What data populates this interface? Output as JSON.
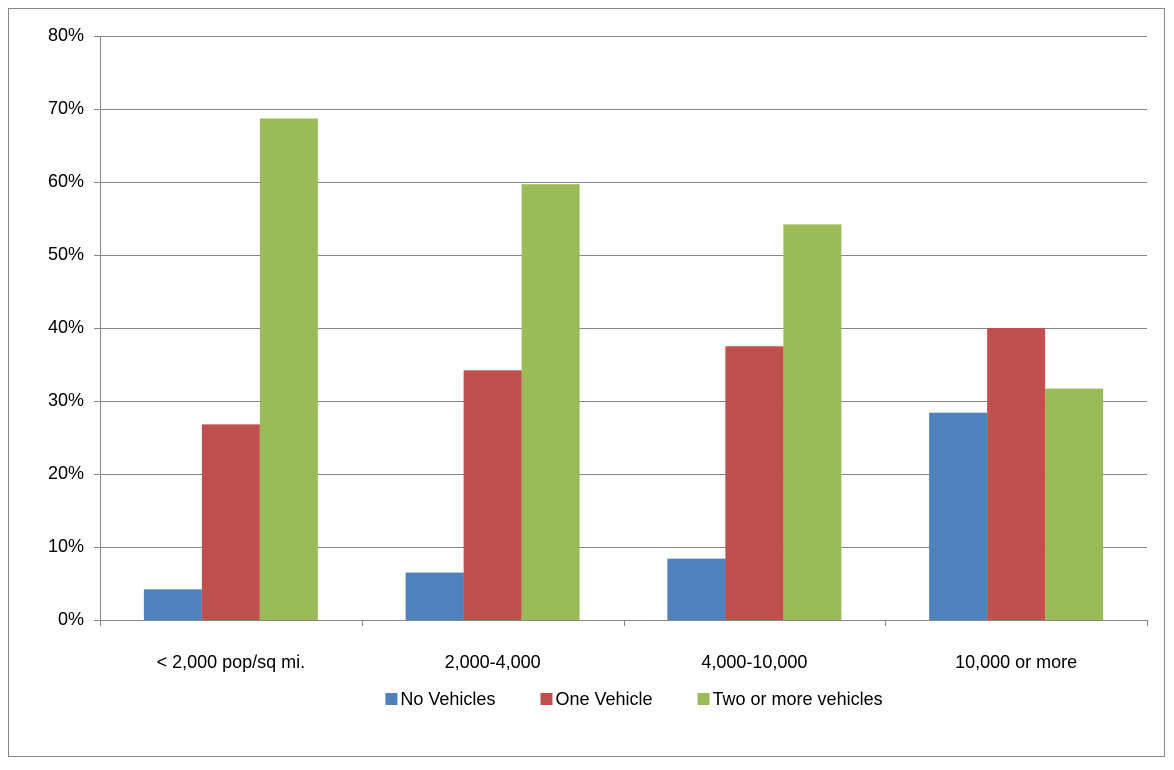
{
  "chart_data": {
    "type": "bar",
    "categories": [
      "< 2,000 pop/sq mi.",
      "2,000-4,000",
      "4,000-10,000",
      "10,000 or more"
    ],
    "series": [
      {
        "name": "No Vehicles",
        "color": "#4f81bd",
        "values": [
          4.2,
          6.5,
          8.4,
          28.4
        ]
      },
      {
        "name": "One Vehicle",
        "color": "#c0504d",
        "values": [
          26.8,
          34.2,
          37.5,
          40
        ]
      },
      {
        "name": "Two or more vehicles",
        "color": "#9bbb59",
        "values": [
          68.7,
          59.7,
          54.2,
          31.7
        ]
      }
    ],
    "ylim": [
      0,
      80
    ],
    "yticks": [
      {
        "value": 0,
        "label": "0%"
      },
      {
        "value": 10,
        "label": "10%"
      },
      {
        "value": 20,
        "label": "20%"
      },
      {
        "value": 30,
        "label": "30%"
      },
      {
        "value": 40,
        "label": "40%"
      },
      {
        "value": 50,
        "label": "50%"
      },
      {
        "value": 60,
        "label": "60%"
      },
      {
        "value": 70,
        "label": "70%"
      },
      {
        "value": 80,
        "label": "80%"
      }
    ],
    "grid": true,
    "legend": "bottom"
  }
}
